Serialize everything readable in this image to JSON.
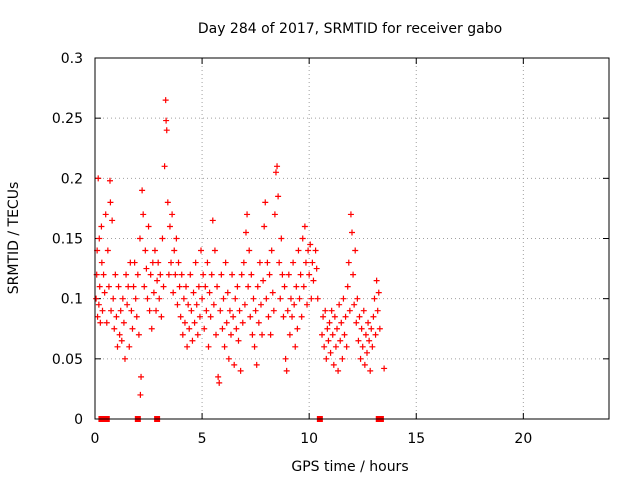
{
  "chart_data": {
    "type": "scatter",
    "title": "Day 284 of 2017, SRMTID for receiver gabo",
    "xlabel": "GPS time / hours",
    "ylabel": "SRMTID / TECUs",
    "xlim": [
      0,
      24
    ],
    "ylim": [
      0,
      0.3
    ],
    "xticks": [
      0,
      5,
      10,
      15,
      20
    ],
    "xtick_labels": [
      "0",
      "5",
      "10",
      "15",
      "20"
    ],
    "yticks": [
      0,
      0.05,
      0.1,
      0.15,
      0.2,
      0.25,
      0.3
    ],
    "ytick_labels": [
      "0",
      "0.05",
      "0.1",
      "0.15",
      "0.2",
      "0.25",
      "0.3"
    ],
    "grid": true,
    "marker": "+",
    "color": "#ff0000",
    "series": [
      {
        "name": "SRMTID",
        "points": [
          [
            0.05,
            0.1
          ],
          [
            0.08,
            0.12
          ],
          [
            0.1,
            0.14
          ],
          [
            0.12,
            0.085
          ],
          [
            0.15,
            0.2
          ],
          [
            0.18,
            0.095
          ],
          [
            0.2,
            0.15
          ],
          [
            0.22,
            0.11
          ],
          [
            0.25,
            0.08
          ],
          [
            0.3,
            0.16
          ],
          [
            0.32,
            0.13
          ],
          [
            0.35,
            0.09
          ],
          [
            0.4,
            0.12
          ],
          [
            0.45,
            0.105
          ],
          [
            0.5,
            0.17
          ],
          [
            0.55,
            0.08
          ],
          [
            0.6,
            0.14
          ],
          [
            0.65,
            0.11
          ],
          [
            0.7,
            0.198
          ],
          [
            0.72,
            0.18
          ],
          [
            0.75,
            0.09
          ],
          [
            0.8,
            0.165
          ],
          [
            0.85,
            0.1
          ],
          [
            0.9,
            0.075
          ],
          [
            0.95,
            0.12
          ],
          [
            1.0,
            0.085
          ],
          [
            1.05,
            0.06
          ],
          [
            1.1,
            0.11
          ],
          [
            1.15,
            0.07
          ],
          [
            1.2,
            0.09
          ],
          [
            1.25,
            0.065
          ],
          [
            1.3,
            0.1
          ],
          [
            1.35,
            0.08
          ],
          [
            1.4,
            0.05
          ],
          [
            1.45,
            0.12
          ],
          [
            1.5,
            0.095
          ],
          [
            1.55,
            0.11
          ],
          [
            1.6,
            0.06
          ],
          [
            1.65,
            0.13
          ],
          [
            1.7,
            0.09
          ],
          [
            1.75,
            0.075
          ],
          [
            1.8,
            0.11
          ],
          [
            1.85,
            0.13
          ],
          [
            1.9,
            0.1
          ],
          [
            1.95,
            0.085
          ],
          [
            2.0,
            0.12
          ],
          [
            2.05,
            0.07
          ],
          [
            2.1,
            0.15
          ],
          [
            2.12,
            0.02
          ],
          [
            2.15,
            0.035
          ],
          [
            2.2,
            0.19
          ],
          [
            2.25,
            0.17
          ],
          [
            2.3,
            0.11
          ],
          [
            2.35,
            0.14
          ],
          [
            2.4,
            0.125
          ],
          [
            2.45,
            0.1
          ],
          [
            2.5,
            0.16
          ],
          [
            2.55,
            0.09
          ],
          [
            2.6,
            0.12
          ],
          [
            2.65,
            0.075
          ],
          [
            2.7,
            0.13
          ],
          [
            2.75,
            0.105
          ],
          [
            2.8,
            0.14
          ],
          [
            2.85,
            0.09
          ],
          [
            2.9,
            0.115
          ],
          [
            2.95,
            0.13
          ],
          [
            3.0,
            0.1
          ],
          [
            3.05,
            0.12
          ],
          [
            3.1,
            0.085
          ],
          [
            3.15,
            0.15
          ],
          [
            3.2,
            0.11
          ],
          [
            3.25,
            0.21
          ],
          [
            3.3,
            0.265
          ],
          [
            3.32,
            0.248
          ],
          [
            3.35,
            0.24
          ],
          [
            3.4,
            0.18
          ],
          [
            3.45,
            0.12
          ],
          [
            3.5,
            0.16
          ],
          [
            3.55,
            0.13
          ],
          [
            3.6,
            0.17
          ],
          [
            3.65,
            0.105
          ],
          [
            3.7,
            0.14
          ],
          [
            3.75,
            0.12
          ],
          [
            3.8,
            0.15
          ],
          [
            3.85,
            0.095
          ],
          [
            3.9,
            0.13
          ],
          [
            3.95,
            0.11
          ],
          [
            4.0,
            0.085
          ],
          [
            4.05,
            0.12
          ],
          [
            4.1,
            0.07
          ],
          [
            4.15,
            0.1
          ],
          [
            4.2,
            0.08
          ],
          [
            4.25,
            0.11
          ],
          [
            4.3,
            0.06
          ],
          [
            4.35,
            0.095
          ],
          [
            4.4,
            0.075
          ],
          [
            4.45,
            0.12
          ],
          [
            4.5,
            0.09
          ],
          [
            4.55,
            0.065
          ],
          [
            4.6,
            0.105
          ],
          [
            4.65,
            0.08
          ],
          [
            4.7,
            0.13
          ],
          [
            4.75,
            0.095
          ],
          [
            4.8,
            0.07
          ],
          [
            4.85,
            0.11
          ],
          [
            4.9,
            0.085
          ],
          [
            4.95,
            0.14
          ],
          [
            5.0,
            0.1
          ],
          [
            5.05,
            0.12
          ],
          [
            5.1,
            0.075
          ],
          [
            5.15,
            0.11
          ],
          [
            5.2,
            0.09
          ],
          [
            5.25,
            0.13
          ],
          [
            5.3,
            0.06
          ],
          [
            5.35,
            0.105
          ],
          [
            5.4,
            0.085
          ],
          [
            5.45,
            0.12
          ],
          [
            5.5,
            0.165
          ],
          [
            5.55,
            0.095
          ],
          [
            5.6,
            0.14
          ],
          [
            5.65,
            0.07
          ],
          [
            5.7,
            0.11
          ],
          [
            5.75,
            0.035
          ],
          [
            5.8,
            0.03
          ],
          [
            5.85,
            0.09
          ],
          [
            5.9,
            0.12
          ],
          [
            5.95,
            0.075
          ],
          [
            6.0,
            0.1
          ],
          [
            6.05,
            0.06
          ],
          [
            6.1,
            0.13
          ],
          [
            6.15,
            0.08
          ],
          [
            6.2,
            0.105
          ],
          [
            6.25,
            0.05
          ],
          [
            6.3,
            0.09
          ],
          [
            6.35,
            0.07
          ],
          [
            6.4,
            0.12
          ],
          [
            6.45,
            0.085
          ],
          [
            6.5,
            0.045
          ],
          [
            6.55,
            0.1
          ],
          [
            6.6,
            0.075
          ],
          [
            6.65,
            0.11
          ],
          [
            6.7,
            0.065
          ],
          [
            6.75,
            0.09
          ],
          [
            6.8,
            0.04
          ],
          [
            6.85,
            0.12
          ],
          [
            6.9,
            0.08
          ],
          [
            6.95,
            0.13
          ],
          [
            7.0,
            0.095
          ],
          [
            7.05,
            0.155
          ],
          [
            7.1,
            0.17
          ],
          [
            7.15,
            0.11
          ],
          [
            7.2,
            0.14
          ],
          [
            7.25,
            0.085
          ],
          [
            7.3,
            0.12
          ],
          [
            7.35,
            0.07
          ],
          [
            7.4,
            0.1
          ],
          [
            7.45,
            0.06
          ],
          [
            7.5,
            0.09
          ],
          [
            7.55,
            0.045
          ],
          [
            7.6,
            0.11
          ],
          [
            7.65,
            0.08
          ],
          [
            7.7,
            0.13
          ],
          [
            7.75,
            0.095
          ],
          [
            7.8,
            0.07
          ],
          [
            7.85,
            0.115
          ],
          [
            7.9,
            0.16
          ],
          [
            7.95,
            0.18
          ],
          [
            8.0,
            0.1
          ],
          [
            8.05,
            0.13
          ],
          [
            8.1,
            0.085
          ],
          [
            8.15,
            0.12
          ],
          [
            8.2,
            0.07
          ],
          [
            8.25,
            0.14
          ],
          [
            8.3,
            0.105
          ],
          [
            8.35,
            0.09
          ],
          [
            8.4,
            0.17
          ],
          [
            8.45,
            0.205
          ],
          [
            8.5,
            0.21
          ],
          [
            8.55,
            0.185
          ],
          [
            8.6,
            0.13
          ],
          [
            8.65,
            0.1
          ],
          [
            8.7,
            0.15
          ],
          [
            8.75,
            0.12
          ],
          [
            8.8,
            0.085
          ],
          [
            8.85,
            0.11
          ],
          [
            8.9,
            0.05
          ],
          [
            8.95,
            0.04
          ],
          [
            9.0,
            0.09
          ],
          [
            9.05,
            0.12
          ],
          [
            9.1,
            0.07
          ],
          [
            9.15,
            0.1
          ],
          [
            9.2,
            0.085
          ],
          [
            9.25,
            0.13
          ],
          [
            9.3,
            0.095
          ],
          [
            9.35,
            0.06
          ],
          [
            9.4,
            0.11
          ],
          [
            9.45,
            0.075
          ],
          [
            9.5,
            0.14
          ],
          [
            9.55,
            0.1
          ],
          [
            9.6,
            0.12
          ],
          [
            9.65,
            0.085
          ],
          [
            9.7,
            0.15
          ],
          [
            9.75,
            0.11
          ],
          [
            9.8,
            0.16
          ],
          [
            9.85,
            0.13
          ],
          [
            9.9,
            0.095
          ],
          [
            9.95,
            0.14
          ],
          [
            10.0,
            0.12
          ],
          [
            10.05,
            0.145
          ],
          [
            10.1,
            0.1
          ],
          [
            10.15,
            0.13
          ],
          [
            10.2,
            0.115
          ],
          [
            10.3,
            0.14
          ],
          [
            10.35,
            0.125
          ],
          [
            10.4,
            0.1
          ],
          [
            10.6,
            0.07
          ],
          [
            10.65,
            0.085
          ],
          [
            10.7,
            0.06
          ],
          [
            10.75,
            0.09
          ],
          [
            10.8,
            0.05
          ],
          [
            10.85,
            0.075
          ],
          [
            10.9,
            0.065
          ],
          [
            10.95,
            0.08
          ],
          [
            11.0,
            0.055
          ],
          [
            11.05,
            0.09
          ],
          [
            11.1,
            0.07
          ],
          [
            11.15,
            0.045
          ],
          [
            11.2,
            0.085
          ],
          [
            11.25,
            0.06
          ],
          [
            11.3,
            0.075
          ],
          [
            11.35,
            0.04
          ],
          [
            11.4,
            0.095
          ],
          [
            11.45,
            0.065
          ],
          [
            11.5,
            0.08
          ],
          [
            11.55,
            0.05
          ],
          [
            11.6,
            0.1
          ],
          [
            11.65,
            0.07
          ],
          [
            11.7,
            0.085
          ],
          [
            11.75,
            0.06
          ],
          [
            11.8,
            0.11
          ],
          [
            11.85,
            0.13
          ],
          [
            11.9,
            0.09
          ],
          [
            11.95,
            0.17
          ],
          [
            12.0,
            0.155
          ],
          [
            12.05,
            0.12
          ],
          [
            12.1,
            0.095
          ],
          [
            12.15,
            0.14
          ],
          [
            12.2,
            0.08
          ],
          [
            12.25,
            0.1
          ],
          [
            12.3,
            0.065
          ],
          [
            12.35,
            0.085
          ],
          [
            12.4,
            0.05
          ],
          [
            12.45,
            0.075
          ],
          [
            12.5,
            0.06
          ],
          [
            12.55,
            0.09
          ],
          [
            12.6,
            0.045
          ],
          [
            12.65,
            0.07
          ],
          [
            12.7,
            0.055
          ],
          [
            12.75,
            0.08
          ],
          [
            12.8,
            0.065
          ],
          [
            12.85,
            0.04
          ],
          [
            12.9,
            0.075
          ],
          [
            12.95,
            0.06
          ],
          [
            13.0,
            0.085
          ],
          [
            13.05,
            0.1
          ],
          [
            13.1,
            0.07
          ],
          [
            13.15,
            0.115
          ],
          [
            13.2,
            0.09
          ],
          [
            13.25,
            0.105
          ],
          [
            13.3,
            0.075
          ],
          [
            13.5,
            0.042
          ]
        ],
        "zero_points": [
          0.3,
          0.45,
          0.55,
          2.0,
          2.9,
          10.5,
          13.25,
          13.35
        ]
      }
    ]
  }
}
